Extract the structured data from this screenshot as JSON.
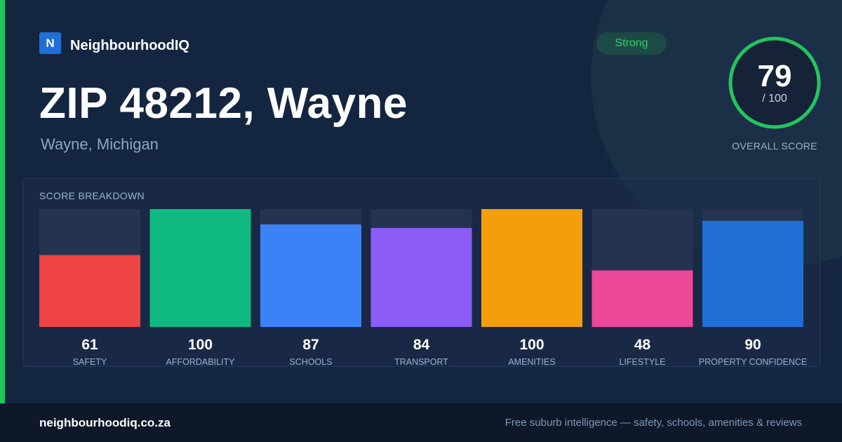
{
  "brand": {
    "logo_letter": "N",
    "name": "NeighbourhoodIQ"
  },
  "header": {
    "title": "ZIP 48212, Wayne",
    "subtitle": "Wayne, Michigan",
    "badge": "Strong"
  },
  "overall": {
    "score": "79",
    "max": "/ 100",
    "label": "OVERALL SCORE",
    "fraction": 0.79
  },
  "breakdown_title": "SCORE BREAKDOWN",
  "colors": {
    "accent": "#22c55e",
    "track": "#243350",
    "safety": "#ef4444",
    "affordability": "#10b981",
    "schools": "#3b82f6",
    "transport": "#8b5cf6",
    "amenities": "#f59e0b",
    "lifestyle": "#ec4899",
    "property_confidence": "#1f6fd6"
  },
  "chart_data": {
    "type": "bar",
    "categories": [
      "SAFETY",
      "AFFORDABILITY",
      "SCHOOLS",
      "TRANSPORT",
      "AMENITIES",
      "LIFESTYLE",
      "PROPERTY CONFIDENCE"
    ],
    "values": [
      61,
      100,
      87,
      84,
      100,
      48,
      90
    ],
    "colors": [
      "#ef4444",
      "#10b981",
      "#3b82f6",
      "#8b5cf6",
      "#f59e0b",
      "#ec4899",
      "#1f6fd6"
    ],
    "ylim": [
      0,
      100
    ],
    "title": "SCORE BREAKDOWN",
    "grid": false
  },
  "footer": {
    "site": "neighbourhoodiq.co.za",
    "tagline": "Free suburb intelligence — safety, schools, amenities & reviews"
  }
}
